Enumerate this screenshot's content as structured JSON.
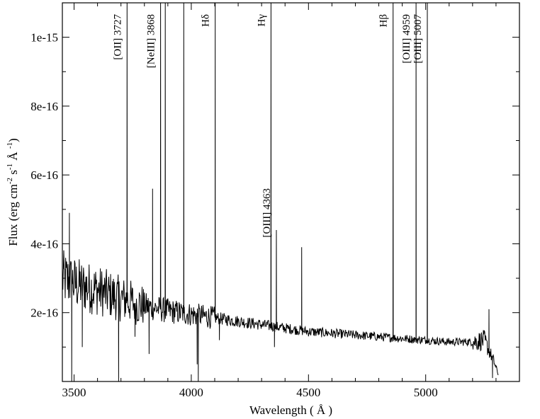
{
  "chart_data": {
    "type": "line",
    "title": "",
    "xlabel": "Wavelength  ( Å )",
    "ylabel": {
      "prefix": "Flux (erg cm",
      "exp1": "-2",
      "mid1": " s",
      "exp2": "-1",
      "mid2": " Å ",
      "exp3": "-1",
      "suffix": ")"
    },
    "xlim": [
      3450,
      5400
    ],
    "ylim": [
      0,
      1.1e-15
    ],
    "x_ticks": [
      {
        "value": 3500,
        "label": "3500"
      },
      {
        "value": 4000,
        "label": "4000"
      },
      {
        "value": 4500,
        "label": "4500"
      },
      {
        "value": 5000,
        "label": "5000"
      }
    ],
    "y_ticks": [
      {
        "value": 2e-16,
        "label": "2e-16"
      },
      {
        "value": 4e-16,
        "label": "4e-16"
      },
      {
        "value": 6e-16,
        "label": "6e-16"
      },
      {
        "value": 8e-16,
        "label": "8e-16"
      },
      {
        "value": 1e-15,
        "label": "1e-15"
      }
    ],
    "continuum": [
      [
        3450,
        3e-16
      ],
      [
        3500,
        2.85e-16
      ],
      [
        3600,
        2.65e-16
      ],
      [
        3700,
        2.4e-16
      ],
      [
        3800,
        2.2e-16
      ],
      [
        3900,
        2.05e-16
      ],
      [
        4000,
        1.95e-16
      ],
      [
        4100,
        1.85e-16
      ],
      [
        4200,
        1.75e-16
      ],
      [
        4300,
        1.65e-16
      ],
      [
        4400,
        1.55e-16
      ],
      [
        4500,
        1.45e-16
      ],
      [
        4600,
        1.4e-16
      ],
      [
        4700,
        1.35e-16
      ],
      [
        4800,
        1.3e-16
      ],
      [
        4900,
        1.25e-16
      ],
      [
        5000,
        1.2e-16
      ],
      [
        5100,
        1.15e-16
      ],
      [
        5200,
        1.15e-16
      ],
      [
        5250,
        1.2e-16
      ],
      [
        5290,
        6e-17
      ],
      [
        5310,
        2e-17
      ]
    ],
    "emission_peaks": [
      {
        "x": 3726,
        "y": 1.1e-15
      },
      {
        "x": 3835,
        "y": 5.6e-16
      },
      {
        "x": 3869,
        "y": 1.1e-15
      },
      {
        "x": 3889,
        "y": 1.1e-15
      },
      {
        "x": 3968,
        "y": 1.1e-15
      },
      {
        "x": 4102,
        "y": 1.1e-15
      },
      {
        "x": 4340,
        "y": 1.1e-15
      },
      {
        "x": 4363,
        "y": 4.4e-16
      },
      {
        "x": 4471,
        "y": 3.9e-16
      },
      {
        "x": 4861,
        "y": 1.1e-15
      },
      {
        "x": 4959,
        "y": 1.1e-15
      },
      {
        "x": 5007,
        "y": 1.1e-15
      },
      {
        "x": 5270,
        "y": 2.1e-16
      },
      {
        "x": 3480,
        "y": 4.9e-16
      }
    ],
    "absorption_dips": [
      {
        "x": 3490,
        "y": 0.0
      },
      {
        "x": 3535,
        "y": 1e-16
      },
      {
        "x": 3690,
        "y": 0.0
      },
      {
        "x": 3760,
        "y": 1.3e-16
      },
      {
        "x": 3820,
        "y": 8e-17
      },
      {
        "x": 4025,
        "y": 5e-17
      },
      {
        "x": 4030,
        "y": 0.0
      },
      {
        "x": 4120,
        "y": 1.2e-16
      },
      {
        "x": 4355,
        "y": 1e-16
      },
      {
        "x": 5285,
        "y": 1e-17
      }
    ],
    "annotations": [
      {
        "label": "[OII] 3727",
        "x": 3727
      },
      {
        "label": "[NeIII] 3868",
        "x": 3868
      },
      {
        "label": "Hδ",
        "x": 4102
      },
      {
        "label": "Hγ",
        "x": 4340
      },
      {
        "label": "[OIII] 4363",
        "x": 4363
      },
      {
        "label": "Hβ",
        "x": 4861
      },
      {
        "label": "[OIII] 4959",
        "x": 4959
      },
      {
        "label": "[OIII] 5007",
        "x": 5007
      }
    ]
  }
}
